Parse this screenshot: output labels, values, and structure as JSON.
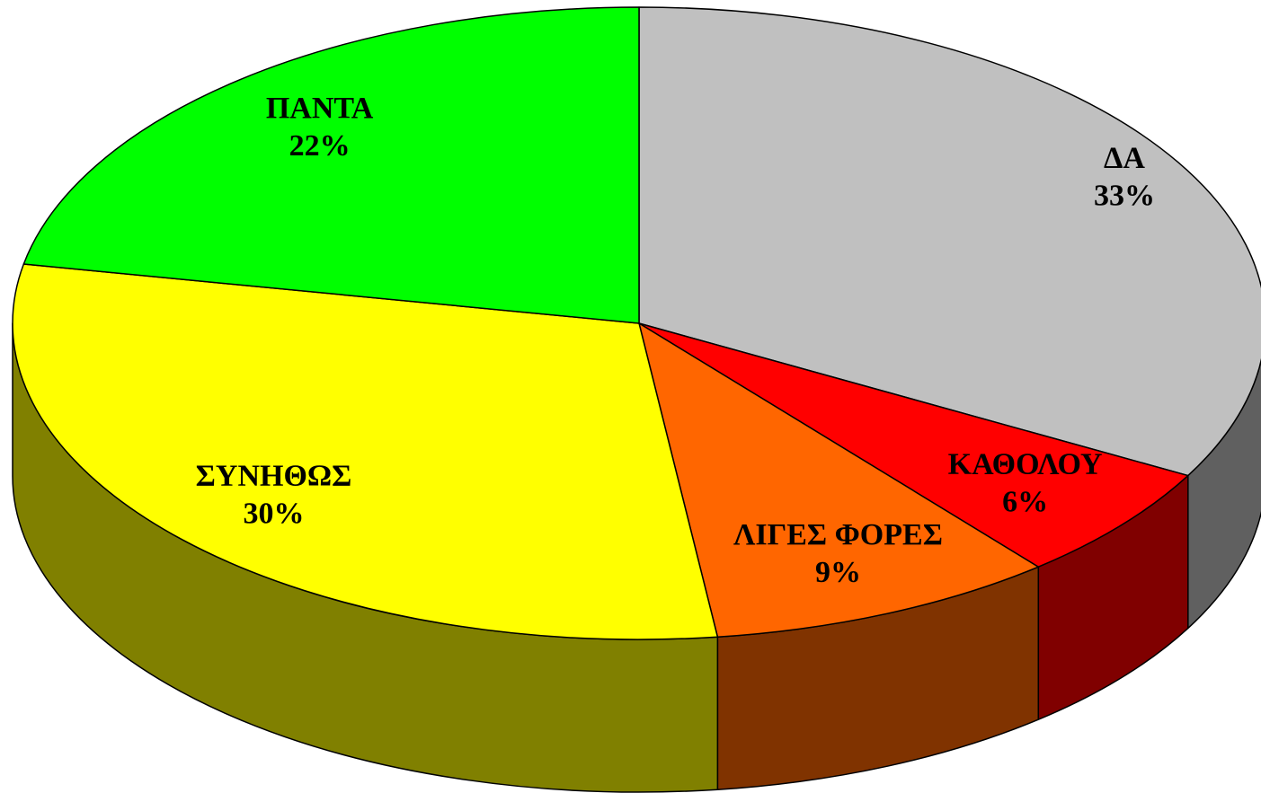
{
  "chart_data": {
    "type": "pie3d",
    "categories": [
      "ΔΑ",
      "ΚΑΘΟΛΟΥ",
      "ΛΙΓΕΣ ΦΟΡΕΣ",
      "ΣΥΝΗΘΩΣ",
      "ΠΑΝΤΑ"
    ],
    "values": [
      33,
      6,
      9,
      30,
      22
    ],
    "value_labels": [
      "33%",
      "6%",
      "9%",
      "30%",
      "22%"
    ],
    "colors": [
      "#c0c0c0",
      "#ff0000",
      "#ff6600",
      "#ffff00",
      "#00ff00"
    ],
    "side_colors": [
      "#606060",
      "#800000",
      "#803300",
      "#808000",
      "#008000"
    ]
  }
}
